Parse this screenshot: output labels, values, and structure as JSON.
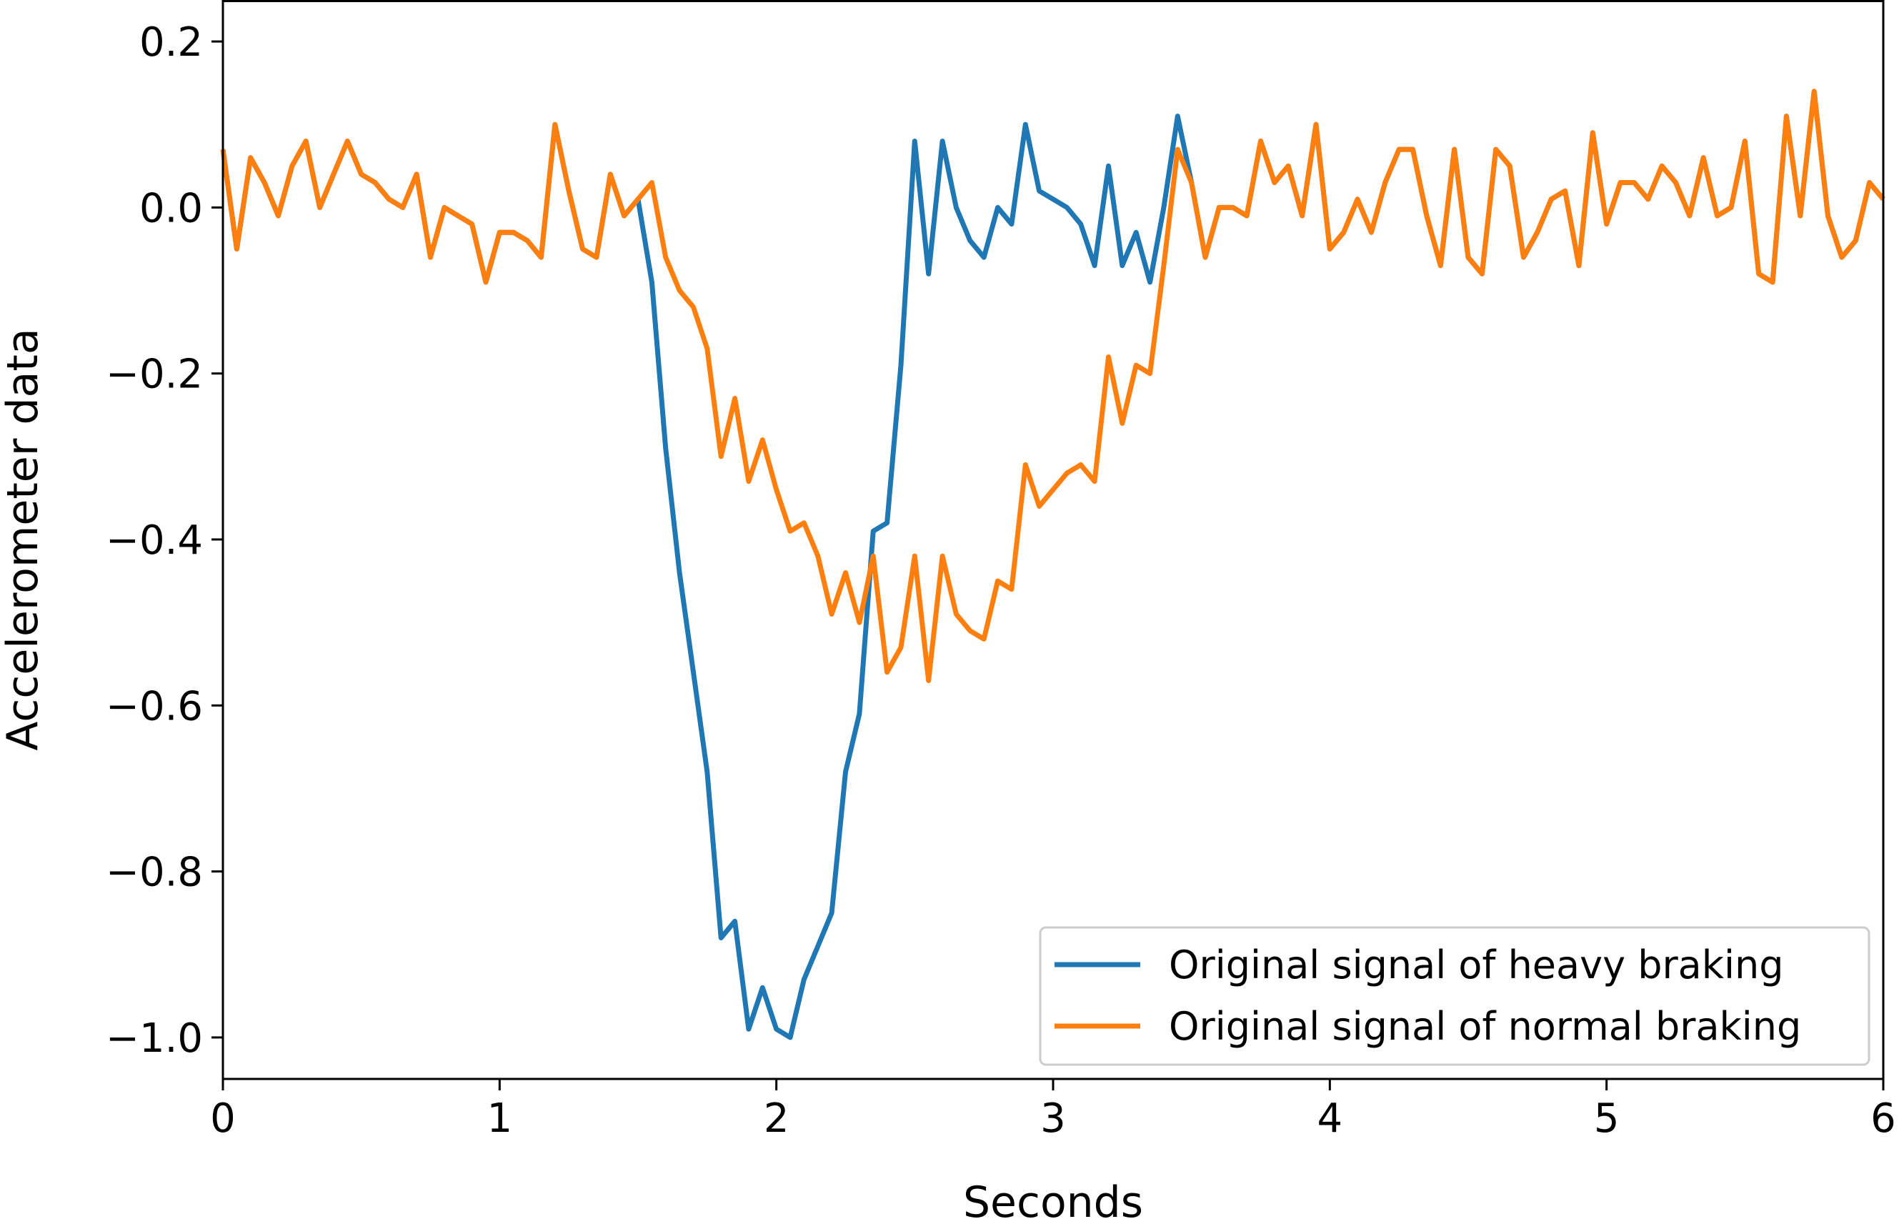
{
  "chart_data": {
    "type": "line",
    "title": "",
    "xlabel": "Seconds",
    "ylabel": "Accelerometer data",
    "xlim": [
      0,
      6
    ],
    "ylim": [
      -1.05,
      0.25
    ],
    "xticks": [
      0,
      1,
      2,
      3,
      4,
      5,
      6
    ],
    "xtick_labels": [
      "0",
      "1",
      "2",
      "3",
      "4",
      "5",
      "6"
    ],
    "yticks": [
      0.2,
      0.0,
      -0.2,
      -0.4,
      -0.6,
      -0.8,
      -1.0
    ],
    "ytick_labels": [
      "0.2",
      "0.0",
      "−0.2",
      "−0.4",
      "−0.6",
      "−0.8",
      "−1.0"
    ],
    "grid": false,
    "legend_position": "lower right",
    "x": [
      0,
      0.05,
      0.1,
      0.15,
      0.2,
      0.25,
      0.3,
      0.35,
      0.4,
      0.45,
      0.5,
      0.55,
      0.6,
      0.65,
      0.7,
      0.75,
      0.8,
      0.85,
      0.9,
      0.95,
      1.0,
      1.05,
      1.1,
      1.15,
      1.2,
      1.25,
      1.3,
      1.35,
      1.4,
      1.45,
      1.5,
      1.55,
      1.6,
      1.65,
      1.7,
      1.75,
      1.8,
      1.85,
      1.9,
      1.95,
      2.0,
      2.05,
      2.1,
      2.15,
      2.2,
      2.25,
      2.3,
      2.35,
      2.4,
      2.45,
      2.5,
      2.55,
      2.6,
      2.65,
      2.7,
      2.75,
      2.8,
      2.85,
      2.9,
      2.95,
      3.0,
      3.05,
      3.1,
      3.15,
      3.2,
      3.25,
      3.3,
      3.35,
      3.4,
      3.45,
      3.5,
      3.55,
      3.6,
      3.65,
      3.7,
      3.75,
      3.8,
      3.85,
      3.9,
      3.95,
      4.0,
      4.05,
      4.1,
      4.15,
      4.2,
      4.25,
      4.3,
      4.35,
      4.4,
      4.45,
      4.5,
      4.55,
      4.6,
      4.65,
      4.7,
      4.75,
      4.8,
      4.85,
      4.9,
      4.95,
      5.0,
      5.05,
      5.1,
      5.15,
      5.2,
      5.25,
      5.3,
      5.35,
      5.4,
      5.45,
      5.5,
      5.55,
      5.6,
      5.65,
      5.7,
      5.75,
      5.8,
      5.85,
      5.9,
      5.95,
      6.0
    ],
    "series": [
      {
        "name": "Original signal of heavy braking",
        "color": "#1f77b4",
        "values": [
          0.07,
          -0.05,
          0.06,
          0.03,
          -0.01,
          0.05,
          0.08,
          0.0,
          0.04,
          0.08,
          0.04,
          0.03,
          0.01,
          0.0,
          0.04,
          -0.06,
          0.0,
          -0.01,
          -0.02,
          -0.09,
          -0.03,
          -0.03,
          -0.04,
          -0.06,
          0.1,
          0.02,
          -0.05,
          -0.06,
          0.04,
          -0.01,
          0.01,
          -0.09,
          -0.29,
          -0.44,
          -0.56,
          -0.68,
          -0.88,
          -0.86,
          -0.99,
          -0.94,
          -0.99,
          -1.0,
          -0.93,
          -0.89,
          -0.85,
          -0.68,
          -0.61,
          -0.39,
          -0.38,
          -0.19,
          0.08,
          -0.08,
          0.08,
          0.0,
          -0.04,
          -0.06,
          0.0,
          -0.02,
          0.1,
          0.02,
          0.01,
          0.0,
          -0.02,
          -0.07,
          0.05,
          -0.07,
          -0.03,
          -0.09,
          0.0,
          0.11,
          0.03,
          -0.06,
          0.0,
          0.0,
          -0.01,
          0.08,
          0.03,
          0.05,
          -0.01,
          0.1,
          -0.05,
          -0.03,
          0.01,
          -0.03,
          0.03,
          0.07,
          0.07,
          -0.01,
          -0.07,
          0.07,
          -0.06,
          -0.08,
          0.07,
          0.05,
          -0.06,
          -0.03,
          0.01,
          0.02,
          -0.07,
          0.09,
          -0.02,
          0.03,
          0.03,
          0.01,
          0.05,
          0.03,
          -0.01,
          0.06,
          -0.01,
          0.0,
          0.08,
          -0.08,
          -0.09,
          0.11,
          -0.01,
          0.14,
          -0.01,
          -0.06,
          -0.04,
          0.03,
          0.01
        ]
      },
      {
        "name": "Original signal of normal braking",
        "color": "#ff7f0e",
        "values": [
          0.07,
          -0.05,
          0.06,
          0.03,
          -0.01,
          0.05,
          0.08,
          0.0,
          0.04,
          0.08,
          0.04,
          0.03,
          0.01,
          0.0,
          0.04,
          -0.06,
          0.0,
          -0.01,
          -0.02,
          -0.09,
          -0.03,
          -0.03,
          -0.04,
          -0.06,
          0.1,
          0.02,
          -0.05,
          -0.06,
          0.04,
          -0.01,
          0.01,
          0.03,
          -0.06,
          -0.1,
          -0.12,
          -0.17,
          -0.3,
          -0.23,
          -0.33,
          -0.28,
          -0.34,
          -0.39,
          -0.38,
          -0.42,
          -0.49,
          -0.44,
          -0.5,
          -0.42,
          -0.56,
          -0.53,
          -0.42,
          -0.57,
          -0.42,
          -0.49,
          -0.51,
          -0.52,
          -0.45,
          -0.46,
          -0.31,
          -0.36,
          -0.34,
          -0.32,
          -0.31,
          -0.33,
          -0.18,
          -0.26,
          -0.19,
          -0.2,
          -0.07,
          0.07,
          0.03,
          -0.06,
          0.0,
          0.0,
          -0.01,
          0.08,
          0.03,
          0.05,
          -0.01,
          0.1,
          -0.05,
          -0.03,
          0.01,
          -0.03,
          0.03,
          0.07,
          0.07,
          -0.01,
          -0.07,
          0.07,
          -0.06,
          -0.08,
          0.07,
          0.05,
          -0.06,
          -0.03,
          0.01,
          0.02,
          -0.07,
          0.09,
          -0.02,
          0.03,
          0.03,
          0.01,
          0.05,
          0.03,
          -0.01,
          0.06,
          -0.01,
          0.0,
          0.08,
          -0.08,
          -0.09,
          0.11,
          -0.01,
          0.14,
          -0.01,
          -0.06,
          -0.04,
          0.03,
          0.01
        ]
      }
    ]
  }
}
